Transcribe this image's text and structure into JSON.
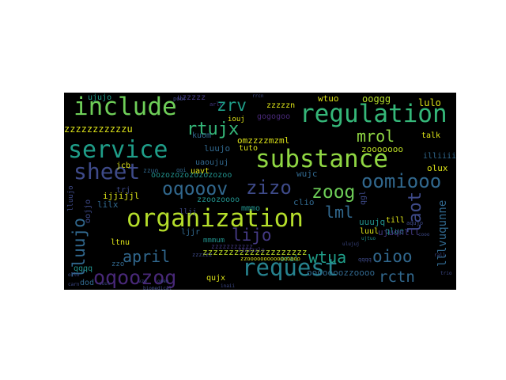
{
  "words": [
    {
      "text": "organization",
      "color": "#b5de2b"
    },
    {
      "text": "regulation",
      "color": "#35b779"
    },
    {
      "text": "include",
      "color": "#6ece58"
    },
    {
      "text": "substance",
      "color": "#90d743"
    },
    {
      "text": "service",
      "color": "#1f9e89"
    },
    {
      "text": "sheet",
      "color": "#3e4a89"
    },
    {
      "text": "request",
      "color": "#26828e"
    },
    {
      "text": "oqooov",
      "color": "#31688e"
    },
    {
      "text": "zizo",
      "color": "#3e4a89"
    },
    {
      "text": "oqoozog",
      "color": "#482878"
    },
    {
      "text": "oomiooo",
      "color": "#31688e"
    },
    {
      "text": "zoog",
      "color": "#6ece58"
    },
    {
      "text": "rtujx",
      "color": "#35b779"
    },
    {
      "text": "zrv",
      "color": "#1f9e89"
    },
    {
      "text": "mrol",
      "color": "#90d743"
    },
    {
      "text": "lijo",
      "color": "#443983"
    },
    {
      "text": "lml",
      "color": "#31688e"
    },
    {
      "text": "wtua",
      "color": "#1f9e89"
    },
    {
      "text": "april",
      "color": "#31688e"
    },
    {
      "text": "oioo",
      "color": "#31688e"
    },
    {
      "text": "rctn",
      "color": "#31688e"
    },
    {
      "text": "lluujo",
      "color": "#31688e"
    },
    {
      "text": "laot",
      "color": "#3e4a89"
    },
    {
      "text": "lllvuqunne",
      "color": "#31688e"
    },
    {
      "text": "zzzzzzzzzzzu",
      "color": "#dde318"
    },
    {
      "text": "oozozozozozozozoo",
      "color": "#21918c"
    },
    {
      "text": "omzzzzmzml",
      "color": "#dde318"
    },
    {
      "text": "zzzzzzzzzzzzzzzzzzzz",
      "color": "#bddf26"
    },
    {
      "text": "ooooooozzoooo",
      "color": "#31688e"
    },
    {
      "text": "zooooooo",
      "color": "#bddf26"
    },
    {
      "text": "zzzzzn",
      "color": "#dde318"
    },
    {
      "text": "gogogoo",
      "color": "#482878"
    },
    {
      "text": "luujo",
      "color": "#31688e"
    },
    {
      "text": "uaoujuj",
      "color": "#31688e"
    },
    {
      "text": "wtuo",
      "color": "#dde318"
    },
    {
      "text": "ooggg",
      "color": "#b5de2b"
    },
    {
      "text": "lulo",
      "color": "#dde318"
    },
    {
      "text": "ujujo",
      "color": "#1f9e89"
    },
    {
      "text": "uzzzzz",
      "color": "#443983"
    },
    {
      "text": "talk",
      "color": "#dde318"
    },
    {
      "text": "illiiii",
      "color": "#31688e"
    },
    {
      "text": "olux",
      "color": "#dde318"
    },
    {
      "text": "till",
      "color": "#dde318"
    },
    {
      "text": "luul",
      "color": "#dde318"
    },
    {
      "text": "uuujq",
      "color": "#21918c"
    },
    {
      "text": "clio",
      "color": "#31688e"
    },
    {
      "text": "ijjijjl",
      "color": "#dde318"
    },
    {
      "text": "lilx",
      "color": "#31688e"
    },
    {
      "text": "ljjr",
      "color": "#31688e"
    },
    {
      "text": "ltnu",
      "color": "#dde318"
    },
    {
      "text": "qqqq",
      "color": "#21918c"
    },
    {
      "text": "dod",
      "color": "#31688e"
    },
    {
      "text": "qujx",
      "color": "#dde318"
    },
    {
      "text": "oral",
      "color": "#21918c"
    },
    {
      "text": "mmmo",
      "color": "#21918c"
    },
    {
      "text": "tuto",
      "color": "#dde318"
    },
    {
      "text": "jcb",
      "color": "#dde318"
    },
    {
      "text": "uavt",
      "color": "#dde318"
    },
    {
      "text": "wujc",
      "color": "#31688e"
    },
    {
      "text": "zzoozoooo",
      "color": "#21918c"
    },
    {
      "text": "qlue",
      "color": "#21918c"
    },
    {
      "text": "kuom",
      "color": "#31688e"
    },
    {
      "text": "iouj",
      "color": "#dde318"
    },
    {
      "text": "ujuqnlll",
      "color": "#443983"
    },
    {
      "text": "mmmum",
      "color": "#21918c"
    },
    {
      "text": "zzoooooooooooooooo",
      "color": "#dde318"
    },
    {
      "text": "biomedical",
      "color": "#3e4a89"
    },
    {
      "text": "ujtuo",
      "color": "#21918c"
    },
    {
      "text": "ulujuj",
      "color": "#3e4a89"
    },
    {
      "text": "aqujo",
      "color": "#3e4a89"
    },
    {
      "text": "poor",
      "color": "#3e4a89"
    },
    {
      "text": "arlc",
      "color": "#443983"
    },
    {
      "text": "zzzzzzzzzzz",
      "color": "#443983"
    },
    {
      "text": "zzzzzzlo",
      "color": "#443983"
    },
    {
      "text": "zzo",
      "color": "#31688e"
    },
    {
      "text": "zzuo",
      "color": "#31688e"
    },
    {
      "text": "qoi",
      "color": "#31688e"
    },
    {
      "text": "rrcn",
      "color": "#3e4a89"
    },
    {
      "text": "cooo",
      "color": "#3e4a89"
    },
    {
      "text": "rall",
      "color": "#3e4a89"
    },
    {
      "text": "trio",
      "color": "#3e4a89"
    },
    {
      "text": "ollo",
      "color": "#3e4a89"
    },
    {
      "text": "carn",
      "color": "#3e4a89"
    },
    {
      "text": "cuul",
      "color": "#3e4a89"
    },
    {
      "text": "vzo",
      "color": "#3e4a89"
    },
    {
      "text": "omen",
      "color": "#3e4a89"
    },
    {
      "text": "inaii",
      "color": "#3e4a89"
    },
    {
      "text": "zzzzzz",
      "color": "#3e4a89"
    },
    {
      "text": "qqqq",
      "color": "#3e4a89"
    },
    {
      "text": "oojjo",
      "color": "#3e4a89"
    },
    {
      "text": "lluujo",
      "color": "#3e4a89"
    },
    {
      "text": "qgl",
      "color": "#3e4a89"
    },
    {
      "text": "trj",
      "color": "#3e4a89"
    },
    {
      "text": "lljj",
      "color": "#3e4a89"
    }
  ]
}
